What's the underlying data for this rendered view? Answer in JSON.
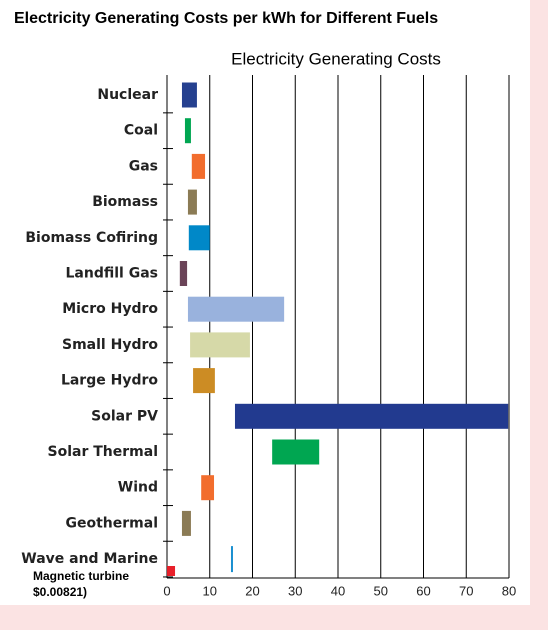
{
  "chart_data": {
    "type": "floating-bar",
    "page_title": "Electricity Generating Costs per kWh for Different Fuels",
    "title": "Electricity Generating Costs",
    "categories": [
      "Nuclear",
      "Coal",
      "Gas",
      "Biomass",
      "Biomass Cofiring",
      "Landfill Gas",
      "Micro Hydro",
      "Small Hydro",
      "Large Hydro",
      "Solar PV",
      "Solar Thermal",
      "Wind",
      "Geothermal",
      "Wave and Marine"
    ],
    "low": [
      3.5,
      4.2,
      5.8,
      4.9,
      5.1,
      3.0,
      4.9,
      5.4,
      6.1,
      15.9,
      24.6,
      8.0,
      3.5,
      15.2
    ],
    "high": [
      7.0,
      5.6,
      8.9,
      7.0,
      10.0,
      4.7,
      27.4,
      19.4,
      11.2,
      79.8,
      35.6,
      11.0,
      5.6,
      15.2
    ],
    "colors": [
      "#25408f",
      "#00a651",
      "#f26d2d",
      "#8b7b55",
      "#0088c8",
      "#6b4458",
      "#99b2dd",
      "#d6d9a8",
      "#cc8c24",
      "#223a8f",
      "#00a651",
      "#f26d2d",
      "#8b7b55",
      "#1a8fd0"
    ],
    "annotation": {
      "label": "Magnetic turbine",
      "value_text": "$0.00821)",
      "value": 0.00821,
      "color": "#e8202a"
    },
    "xlim": [
      0,
      80
    ],
    "xticks": [
      0,
      10,
      20,
      30,
      40,
      50,
      60,
      70,
      80
    ],
    "grid": true
  }
}
